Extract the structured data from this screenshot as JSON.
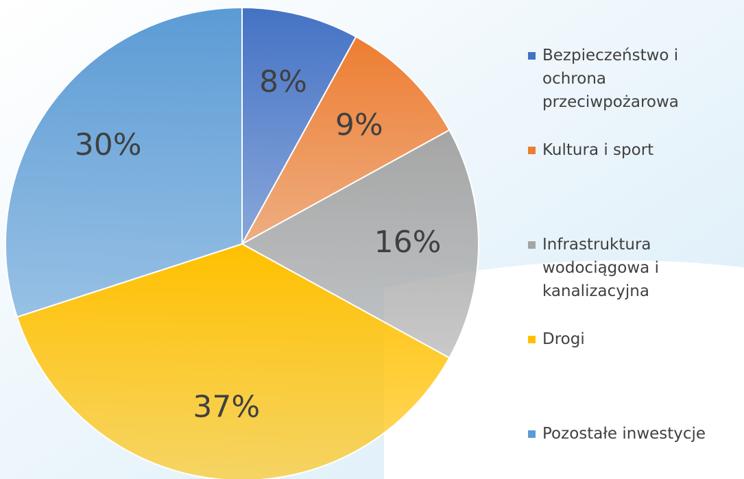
{
  "chart_data": {
    "type": "pie",
    "categories": [
      "Bezpieczeństwo i ochrona przeciwpożarowa",
      "Kultura i sport",
      "Infrastruktura wodociągowa i kanalizacyjna",
      "Drogi",
      "Pozostałe inwestycje"
    ],
    "values": [
      8,
      9,
      16,
      37,
      30
    ],
    "value_labels": [
      "8%",
      "9%",
      "16%",
      "37%",
      "30%"
    ],
    "colors": [
      "#4472c4",
      "#ed7d31",
      "#a5a5a5",
      "#ffc000",
      "#5b9bd5"
    ]
  }
}
